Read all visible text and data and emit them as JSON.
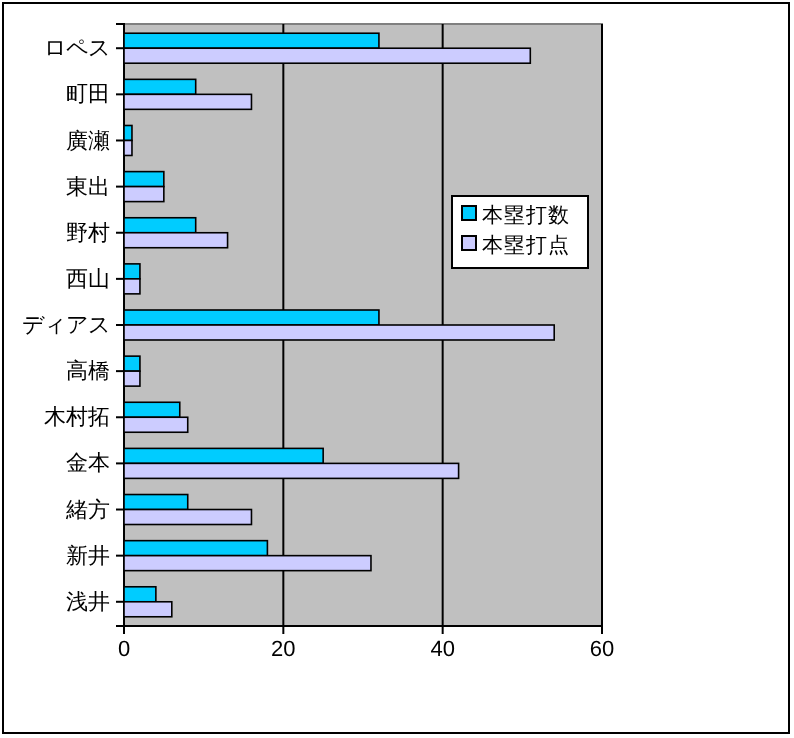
{
  "chart_data": {
    "type": "bar",
    "orientation": "horizontal",
    "categories": [
      "ロペス",
      "町田",
      "廣瀬",
      "東出",
      "野村",
      "西山",
      "ディアス",
      "高橋",
      "木村拓",
      "金本",
      "緒方",
      "新井",
      "浅井"
    ],
    "series": [
      {
        "name": "本塁打数",
        "color": "#00ccff",
        "values": [
          32,
          9,
          1,
          5,
          9,
          2,
          32,
          2,
          7,
          25,
          8,
          18,
          4
        ]
      },
      {
        "name": "本塁打点",
        "color": "#ccccff",
        "values": [
          51,
          16,
          1,
          5,
          13,
          2,
          54,
          2,
          8,
          42,
          16,
          31,
          6
        ]
      }
    ],
    "xlim": [
      0,
      60
    ],
    "xticks": [
      0,
      20,
      40,
      60
    ],
    "grid": "x",
    "legend": "right"
  }
}
